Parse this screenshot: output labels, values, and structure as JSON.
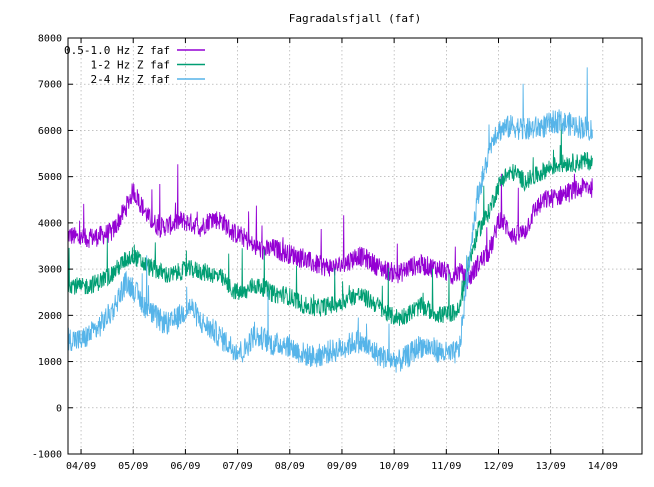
{
  "chart_data": {
    "type": "line",
    "title": "Fagradalsfjall (faf)",
    "xlabel": "",
    "ylabel": "",
    "xlim": [
      3.75,
      14.75
    ],
    "ylim": [
      -1000,
      8000
    ],
    "x_ticks": [
      {
        "value": 4,
        "label": "04/09"
      },
      {
        "value": 5,
        "label": "05/09"
      },
      {
        "value": 6,
        "label": "06/09"
      },
      {
        "value": 7,
        "label": "07/09"
      },
      {
        "value": 8,
        "label": "08/09"
      },
      {
        "value": 9,
        "label": "09/09"
      },
      {
        "value": 10,
        "label": "10/09"
      },
      {
        "value": 11,
        "label": "11/09"
      },
      {
        "value": 12,
        "label": "12/09"
      },
      {
        "value": 13,
        "label": "13/09"
      },
      {
        "value": 14,
        "label": "14/09"
      }
    ],
    "y_ticks": [
      -1000,
      0,
      1000,
      2000,
      3000,
      4000,
      5000,
      6000,
      7000,
      8000
    ],
    "grid": true,
    "legend_position": "top-left",
    "series": [
      {
        "name": "0.5-1.0 Hz Z faf",
        "color": "#9400d3",
        "noise": 220,
        "x": [
          3.75,
          4.0,
          4.3,
          4.6,
          4.85,
          5.0,
          5.15,
          5.3,
          5.5,
          5.7,
          5.9,
          6.1,
          6.3,
          6.5,
          6.7,
          6.9,
          7.1,
          7.3,
          7.5,
          7.7,
          7.9,
          8.1,
          8.3,
          8.5,
          8.7,
          8.9,
          9.1,
          9.3,
          9.5,
          9.7,
          9.9,
          10.1,
          10.3,
          10.5,
          10.7,
          10.9,
          11.1,
          11.25,
          11.4,
          11.5,
          11.6,
          11.8,
          11.9,
          12.0,
          12.1,
          12.3,
          12.5,
          12.7,
          12.9,
          13.1,
          13.3,
          13.5,
          13.7,
          13.8
        ],
        "y": [
          3750,
          3650,
          3700,
          3800,
          4300,
          4700,
          4400,
          4100,
          3900,
          3950,
          4050,
          4000,
          3900,
          4100,
          4050,
          3800,
          3700,
          3500,
          3400,
          3450,
          3350,
          3300,
          3200,
          3100,
          3050,
          3050,
          3150,
          3300,
          3200,
          3050,
          2950,
          2900,
          3050,
          3100,
          3050,
          3000,
          2850,
          2950,
          2750,
          2900,
          3100,
          3350,
          3600,
          4100,
          4000,
          3700,
          3800,
          4300,
          4500,
          4550,
          4650,
          4700,
          4800,
          4750
        ]
      },
      {
        "name": "1-2 Hz Z faf",
        "color": "#009e73",
        "noise": 200,
        "x": [
          3.75,
          4.0,
          4.3,
          4.6,
          4.85,
          5.0,
          5.15,
          5.3,
          5.5,
          5.7,
          5.9,
          6.1,
          6.3,
          6.5,
          6.7,
          6.9,
          7.1,
          7.3,
          7.5,
          7.7,
          7.9,
          8.1,
          8.3,
          8.5,
          8.7,
          8.9,
          9.1,
          9.3,
          9.5,
          9.7,
          9.9,
          10.1,
          10.3,
          10.5,
          10.7,
          10.9,
          11.1,
          11.25,
          11.4,
          11.5,
          11.6,
          11.8,
          11.9,
          12.0,
          12.1,
          12.3,
          12.5,
          12.7,
          12.9,
          13.1,
          13.3,
          13.5,
          13.7,
          13.8
        ],
        "y": [
          2700,
          2600,
          2700,
          2900,
          3200,
          3300,
          3150,
          3050,
          2950,
          2850,
          2950,
          3000,
          2950,
          2900,
          2800,
          2550,
          2450,
          2650,
          2600,
          2450,
          2450,
          2350,
          2200,
          2150,
          2200,
          2250,
          2350,
          2450,
          2350,
          2200,
          2000,
          1950,
          2050,
          2200,
          2100,
          2000,
          2050,
          2100,
          3000,
          3400,
          3800,
          4200,
          4500,
          4800,
          5000,
          5100,
          4900,
          5000,
          5150,
          5250,
          5300,
          5300,
          5350,
          5300
        ]
      },
      {
        "name": "2-4 Hz Z faf",
        "color": "#56b4e9",
        "noise": 260,
        "x": [
          3.75,
          4.0,
          4.3,
          4.6,
          4.85,
          5.0,
          5.15,
          5.3,
          5.5,
          5.7,
          5.9,
          6.1,
          6.3,
          6.5,
          6.7,
          6.9,
          7.1,
          7.3,
          7.5,
          7.7,
          7.9,
          8.1,
          8.3,
          8.5,
          8.7,
          8.9,
          9.1,
          9.3,
          9.5,
          9.7,
          9.9,
          10.1,
          10.3,
          10.5,
          10.7,
          10.9,
          11.1,
          11.25,
          11.4,
          11.5,
          11.6,
          11.8,
          11.9,
          12.0,
          12.1,
          12.3,
          12.5,
          12.7,
          12.9,
          13.1,
          13.3,
          13.5,
          13.7,
          13.8
        ],
        "y": [
          1500,
          1450,
          1700,
          2100,
          2700,
          2600,
          2300,
          2100,
          1900,
          1800,
          2000,
          2200,
          1850,
          1700,
          1500,
          1300,
          1200,
          1550,
          1500,
          1350,
          1400,
          1250,
          1150,
          1100,
          1200,
          1250,
          1350,
          1450,
          1300,
          1150,
          1050,
          1000,
          1150,
          1350,
          1300,
          1200,
          1150,
          1250,
          2800,
          3800,
          4600,
          5400,
          5900,
          6000,
          6050,
          6100,
          6000,
          6050,
          6100,
          6200,
          6150,
          6100,
          6050,
          6000
        ]
      }
    ]
  }
}
